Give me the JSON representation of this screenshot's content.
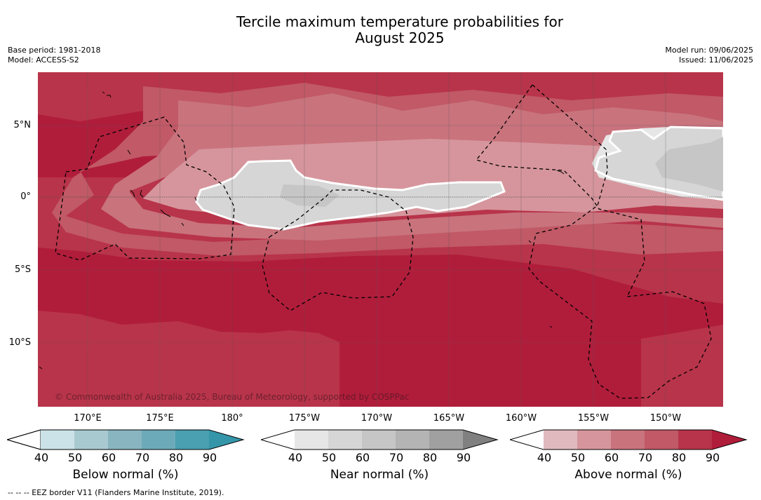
{
  "title_line1": "Tercile maximum temperature probabilities for",
  "title_line2": "August 2025",
  "base_period": "Base period: 1981-2018",
  "model": "Model: ACCESS-S2",
  "model_run": "Model run: 09/06/2025",
  "issued": "Issued: 11/06/2025",
  "credit": "© Commonwealth of Australia 2025, Bureau of Meteorology, supported by COSPPac",
  "lat_labels": [
    "5°N",
    "0°",
    "5°S",
    "10°S"
  ],
  "lon_labels": [
    "170°E",
    "175°E",
    "180°",
    "175°W",
    "170°W",
    "165°W",
    "160°W",
    "155°W",
    "150°W"
  ],
  "legend_note": "--  --  -- EEZ border V11 (Flanders Marine Institute, 2019).",
  "colorbars": [
    {
      "title": "Below normal (%)",
      "ticks": [
        "40",
        "50",
        "60",
        "70",
        "80",
        "90"
      ],
      "colors": [
        "#cbe2e8",
        "#a8c9d0",
        "#89b5c0",
        "#6daab9",
        "#4a9fb0",
        "#3596aa"
      ]
    },
    {
      "title": "Near normal (%)",
      "ticks": [
        "40",
        "50",
        "60",
        "70",
        "80",
        "90"
      ],
      "colors": [
        "#e6e6e6",
        "#d6d6d6",
        "#c6c6c6",
        "#b4b4b4",
        "#a0a0a0",
        "#808080"
      ]
    },
    {
      "title": "Above normal (%)",
      "ticks": [
        "40",
        "50",
        "60",
        "70",
        "80",
        "90"
      ],
      "colors": [
        "#e0b9be",
        "#d6959c",
        "#c9737d",
        "#c15966",
        "#b8344a",
        "#b01d3b"
      ]
    }
  ],
  "map_colors": {
    "above90": "#b01d3b",
    "above80": "#b8344a",
    "above70": "#c15966",
    "above60": "#c9737d",
    "above50": "#d6959c",
    "near40": "#e6e6e6",
    "near50": "#d6d6d6",
    "near60": "#c6c6c6"
  }
}
